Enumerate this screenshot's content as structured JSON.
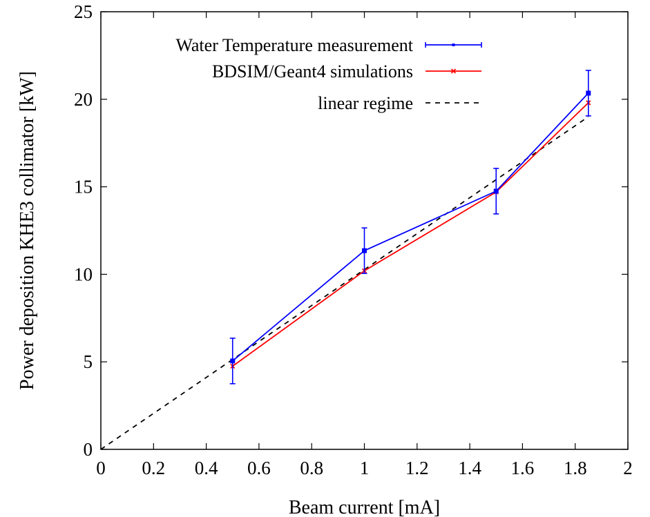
{
  "chart_data": {
    "type": "line",
    "xlabel": "Beam current [mA]",
    "ylabel": "Power deposition KHE3 collimator [kW]",
    "xlim": [
      0,
      2
    ],
    "ylim": [
      0,
      25
    ],
    "xticks": [
      0,
      0.2,
      0.4,
      0.6,
      0.8,
      1,
      1.2,
      1.4,
      1.6,
      1.8,
      2
    ],
    "xtick_labels": [
      "0",
      "0.2",
      "0.4",
      "0.6",
      "0.8",
      "1",
      "1.2",
      "1.4",
      "1.6",
      "1.8",
      "2"
    ],
    "yticks": [
      0,
      5,
      10,
      15,
      20,
      25
    ],
    "ytick_labels": [
      "0",
      "5",
      "10",
      "15",
      "20",
      "25"
    ],
    "grid": false,
    "legend_position": "top-left",
    "series": [
      {
        "name": "Water Temperature measurement",
        "style": "solid-errorbars",
        "color": "#0000ff",
        "x": [
          0.5,
          1.0,
          1.5,
          1.85
        ],
        "y": [
          5.05,
          11.35,
          14.75,
          20.35
        ],
        "yerr": [
          1.3,
          1.3,
          1.3,
          1.3
        ]
      },
      {
        "name": "BDSIM/Geant4 simulations",
        "style": "solid-points",
        "color": "#ff0000",
        "x": [
          0.5,
          1.0,
          1.5,
          1.85
        ],
        "y": [
          4.75,
          10.2,
          14.7,
          19.8
        ]
      },
      {
        "name": "linear regime",
        "style": "dashed",
        "color": "#000000",
        "x": [
          0,
          1.85
        ],
        "y": [
          0,
          19.0
        ]
      }
    ]
  }
}
